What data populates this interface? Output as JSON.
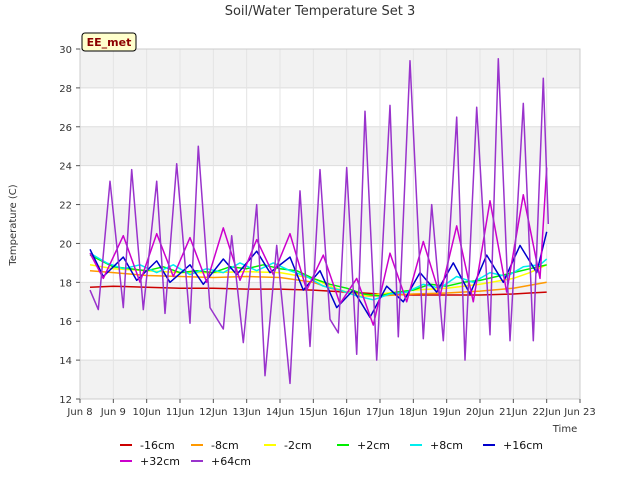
{
  "chart_data": {
    "type": "line",
    "title": "Soil/Water Temperature Set 3",
    "xlabel": "Time",
    "ylabel": "Temperature (C)",
    "badge": "EE_met",
    "ylim": [
      12,
      30
    ],
    "yticks": [
      12,
      14,
      16,
      18,
      20,
      22,
      24,
      26,
      28,
      30
    ],
    "xlim": [
      8,
      23
    ],
    "xticks": [
      {
        "value": 8,
        "label": "Jun 8"
      },
      {
        "value": 9,
        "label": "Jun 9"
      },
      {
        "value": 10,
        "label": "10Jun"
      },
      {
        "value": 11,
        "label": "11Jun"
      },
      {
        "value": 12,
        "label": "12Jun"
      },
      {
        "value": 13,
        "label": "13Jun"
      },
      {
        "value": 14,
        "label": "14Jun"
      },
      {
        "value": 15,
        "label": "15Jun"
      },
      {
        "value": 16,
        "label": "16Jun"
      },
      {
        "value": 17,
        "label": "17Jun"
      },
      {
        "value": 18,
        "label": "18Jun"
      },
      {
        "value": 19,
        "label": "19Jun"
      },
      {
        "value": 20,
        "label": "20Jun"
      },
      {
        "value": 21,
        "label": "21Jun"
      },
      {
        "value": 22,
        "label": "22Jun"
      },
      {
        "value": 23,
        "label": "Jun 23"
      }
    ],
    "grid": true,
    "legend_position": "bottom",
    "series": [
      {
        "name": "-16cm",
        "color": "#cc0000",
        "x": [
          8.3,
          9,
          10,
          11,
          12,
          13,
          14,
          15,
          15.5,
          16,
          16.5,
          17,
          18,
          19,
          20,
          21,
          21.5,
          22
        ],
        "y": [
          17.75,
          17.8,
          17.75,
          17.7,
          17.7,
          17.65,
          17.65,
          17.6,
          17.55,
          17.5,
          17.45,
          17.4,
          17.35,
          17.35,
          17.35,
          17.4,
          17.45,
          17.5
        ]
      },
      {
        "name": "-8cm",
        "color": "#ff9900",
        "x": [
          8.3,
          9,
          10,
          11,
          12,
          13,
          14,
          15,
          15.5,
          16,
          16.5,
          17,
          18,
          19,
          20,
          21,
          21.5,
          22
        ],
        "y": [
          18.6,
          18.5,
          18.35,
          18.3,
          18.25,
          18.3,
          18.25,
          18.0,
          17.7,
          17.5,
          17.3,
          17.3,
          17.4,
          17.45,
          17.55,
          17.7,
          17.85,
          18.0
        ]
      },
      {
        "name": "-2cm",
        "color": "#ffff00",
        "x": [
          8.3,
          9,
          10,
          11,
          12,
          13,
          14,
          15,
          15.5,
          16,
          16.5,
          17,
          18,
          19,
          20,
          21,
          21.5,
          22
        ],
        "y": [
          18.9,
          18.7,
          18.6,
          18.5,
          18.5,
          18.55,
          18.5,
          18.2,
          17.8,
          17.5,
          17.3,
          17.4,
          17.6,
          17.7,
          17.9,
          18.2,
          18.5,
          18.9
        ]
      },
      {
        "name": "+2cm",
        "color": "#00ee00",
        "x": [
          8.3,
          9,
          9.5,
          10,
          10.5,
          11,
          11.5,
          12,
          12.5,
          13,
          13.5,
          14,
          14.5,
          15,
          15.5,
          16,
          16.5,
          17,
          17.5,
          18,
          18.5,
          19,
          19.5,
          20,
          20.5,
          21,
          21.5,
          22
        ],
        "y": [
          19.4,
          18.8,
          18.7,
          18.6,
          18.8,
          18.5,
          18.6,
          18.5,
          18.8,
          18.7,
          18.9,
          18.7,
          18.6,
          18.2,
          17.9,
          17.7,
          17.4,
          17.3,
          17.5,
          17.6,
          17.9,
          17.8,
          18.0,
          18.1,
          18.3,
          18.5,
          18.7,
          18.9
        ]
      },
      {
        "name": "+8cm",
        "color": "#00eeee",
        "x": [
          8.3,
          8.8,
          9.3,
          9.8,
          10.3,
          10.8,
          11.3,
          11.8,
          12.3,
          12.8,
          13.3,
          13.8,
          14.3,
          14.8,
          15.3,
          15.8,
          16.3,
          16.8,
          17.3,
          17.8,
          18.3,
          18.8,
          19.3,
          19.8,
          20.3,
          20.8,
          21.3,
          21.8,
          22.0
        ],
        "y": [
          19.5,
          19.0,
          18.7,
          18.9,
          18.5,
          18.9,
          18.4,
          18.7,
          18.5,
          19.0,
          18.6,
          19.0,
          18.6,
          18.3,
          17.8,
          17.6,
          17.3,
          17.1,
          17.4,
          17.5,
          17.9,
          17.7,
          18.3,
          18.0,
          18.5,
          18.3,
          18.8,
          18.9,
          19.2
        ]
      },
      {
        "name": "+16cm",
        "color": "#0000cc",
        "x": [
          8.3,
          8.7,
          9.3,
          9.7,
          10.3,
          10.7,
          11.3,
          11.7,
          12.3,
          12.7,
          13.3,
          13.7,
          14.3,
          14.7,
          15.2,
          15.7,
          16.2,
          16.7,
          17.2,
          17.7,
          18.2,
          18.7,
          19.2,
          19.7,
          20.2,
          20.7,
          21.2,
          21.7,
          22.0
        ],
        "y": [
          19.7,
          18.3,
          19.3,
          18.1,
          19.1,
          18.0,
          18.9,
          17.9,
          19.2,
          18.4,
          19.6,
          18.5,
          19.3,
          17.6,
          18.6,
          16.7,
          17.6,
          16.2,
          17.8,
          17.0,
          18.5,
          17.5,
          19.0,
          17.4,
          19.4,
          18.0,
          19.9,
          18.5,
          20.6
        ]
      },
      {
        "name": "+32cm",
        "color": "#cc00cc",
        "x": [
          8.3,
          8.7,
          9.3,
          9.8,
          10.3,
          10.8,
          11.3,
          11.8,
          12.3,
          12.8,
          13.3,
          13.8,
          14.3,
          14.8,
          15.3,
          15.8,
          16.3,
          16.8,
          17.3,
          17.8,
          18.3,
          18.8,
          19.3,
          19.8,
          20.3,
          20.8,
          21.3,
          21.8,
          22.0
        ],
        "y": [
          19.5,
          18.2,
          20.4,
          18.0,
          20.5,
          18.3,
          20.3,
          18.0,
          20.8,
          18.1,
          20.2,
          18.4,
          20.5,
          17.6,
          19.4,
          16.9,
          18.2,
          15.8,
          19.5,
          17.0,
          20.1,
          17.3,
          20.9,
          17.0,
          22.2,
          17.5,
          22.5,
          18.2,
          23.9
        ]
      },
      {
        "name": "+64cm",
        "color": "#9933cc",
        "x": [
          8.3,
          8.55,
          8.9,
          9.3,
          9.55,
          9.9,
          10.3,
          10.55,
          10.9,
          11.3,
          11.55,
          11.9,
          12.3,
          12.55,
          12.9,
          13.3,
          13.55,
          13.9,
          14.3,
          14.6,
          14.9,
          15.2,
          15.5,
          15.75,
          16.0,
          16.3,
          16.55,
          16.9,
          17.3,
          17.55,
          17.9,
          18.3,
          18.55,
          18.9,
          19.3,
          19.55,
          19.9,
          20.3,
          20.55,
          20.9,
          21.3,
          21.6,
          21.9,
          22.05
        ],
        "y": [
          17.6,
          16.6,
          23.2,
          16.7,
          23.8,
          16.6,
          23.2,
          16.4,
          24.1,
          15.9,
          25.0,
          16.7,
          15.6,
          20.4,
          14.9,
          22.0,
          13.2,
          19.9,
          12.8,
          22.7,
          14.7,
          23.8,
          16.1,
          15.4,
          23.9,
          14.3,
          26.8,
          14.0,
          27.1,
          15.2,
          29.4,
          15.1,
          22.0,
          15.0,
          26.5,
          14.0,
          27.0,
          15.3,
          29.5,
          15.0,
          27.2,
          15.0,
          28.5,
          21.0
        ]
      }
    ]
  }
}
